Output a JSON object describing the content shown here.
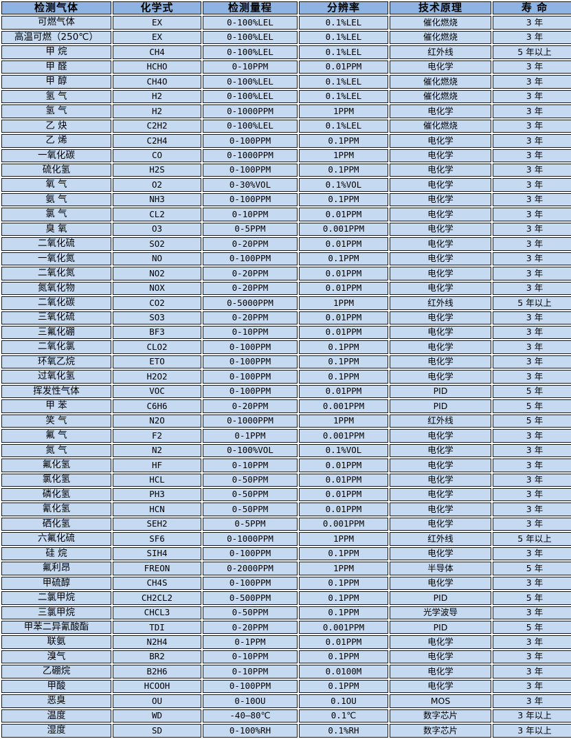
{
  "colors": {
    "header_bg": "#8DB4E2",
    "row_bg": "#C5D9F1",
    "border_color": "#141414",
    "text_color": "#000000",
    "page_bg": "#FFFFFF"
  },
  "table": {
    "col_names": [
      "cell-gas-name",
      "cell-chemical-formula",
      "cell-detection-range",
      "cell-resolution",
      "cell-technology",
      "cell-lifespan"
    ],
    "headers": [
      "检测气体",
      "化学式",
      "检测量程",
      "分辨率",
      "技术原理",
      "寿 命"
    ],
    "rows": [
      [
        "可燃气体",
        "EX",
        "0-100%LEL",
        "0.1%LEL",
        "催化燃烧",
        "3 年"
      ],
      [
        "高温可燃（250℃）",
        "EX",
        "0-100%LEL",
        "0.1%LEL",
        "催化燃烧",
        "3 年"
      ],
      [
        "甲 烷",
        "CH4",
        "0-100%LEL",
        "0.1%LEL",
        "红外线",
        "5 年以上"
      ],
      [
        "甲 醛",
        "HCHO",
        "0-10PPM",
        "0.01PPM",
        "电化学",
        "3 年"
      ],
      [
        "甲 醇",
        "CH4O",
        "0-100%LEL",
        "0.1%LEL",
        "催化燃烧",
        "3 年"
      ],
      [
        "氢 气",
        "H2",
        "0-100%LEL",
        "0.1%LEL",
        "催化燃烧",
        "3 年"
      ],
      [
        "氢 气",
        "H2",
        "0-1000PPM",
        "1PPM",
        "电化学",
        "3 年"
      ],
      [
        "乙 炔",
        "C2H2",
        "0-100%LEL",
        "0.1%LEL",
        "催化燃烧",
        "3 年"
      ],
      [
        "乙 烯",
        "C2H4",
        "0-100PPM",
        "0.1PPM",
        "电化学",
        "3 年"
      ],
      [
        "一氧化碳",
        "CO",
        "0-1000PPM",
        "1PPM",
        "电化学",
        "3 年"
      ],
      [
        "硫化氢",
        "H2S",
        "0-100PPM",
        "0.1PPM",
        "电化学",
        "3 年"
      ],
      [
        "氧 气",
        "O2",
        "0-30%VOL",
        "0.1%VOL",
        "电化学",
        "3 年"
      ],
      [
        "氨 气",
        "NH3",
        "0-100PPM",
        "0.1PPM",
        "电化学",
        "3 年"
      ],
      [
        "氯 气",
        "CL2",
        "0-10PPM",
        "0.01PPM",
        "电化学",
        "3 年"
      ],
      [
        "臭 氧",
        "O3",
        "0-5PPM",
        "0.001PPM",
        "电化学",
        "3 年"
      ],
      [
        "二氧化硫",
        "SO2",
        "0-20PPM",
        "0.01PPM",
        "电化学",
        "3 年"
      ],
      [
        "一氧化氮",
        "NO",
        "0-100PPM",
        "0.1PPM",
        "电化学",
        "3 年"
      ],
      [
        "二氧化氮",
        "NO2",
        "0-20PPM",
        "0.01PPM",
        "电化学",
        "3 年"
      ],
      [
        "氮氧化物",
        "NOX",
        "0-20PPM",
        "0.01PPM",
        "电化学",
        "3 年"
      ],
      [
        "二氧化碳",
        "CO2",
        "0-5000PPM",
        "1PPM",
        "红外线",
        "5 年以上"
      ],
      [
        "三氧化硫",
        "SO3",
        "0-20PPM",
        "0.01PPM",
        "电化学",
        "3 年"
      ],
      [
        "三氟化硼",
        "BF3",
        "0-10PPM",
        "0.01PPM",
        "电化学",
        "3 年"
      ],
      [
        "二氧化氯",
        "CLO2",
        "0-100PPM",
        "0.1PPM",
        "电化学",
        "3 年"
      ],
      [
        "环氧乙烷",
        "ETO",
        "0-100PPM",
        "0.1PPM",
        "电化学",
        "3 年"
      ],
      [
        "过氧化氢",
        "H2O2",
        "0-100PPM",
        "0.1PPM",
        "电化学",
        "3 年"
      ],
      [
        "挥发性气体",
        "VOC",
        "0-100PPM",
        "0.01PPM",
        "PID",
        "5 年"
      ],
      [
        "甲 苯",
        "C6H6",
        "0-20PPM",
        "0.001PPM",
        "PID",
        "5 年"
      ],
      [
        "笑 气",
        "N2O",
        "0-1000PPM",
        "1PPM",
        "红外线",
        "5 年"
      ],
      [
        "氟 气",
        "F2",
        "0-1PPM",
        "0.001PPM",
        "电化学",
        "3 年"
      ],
      [
        "氮 气",
        "N2",
        "0-100%VOL",
        "0.1%VOL",
        "电化学",
        "3 年"
      ],
      [
        "氟化氢",
        "HF",
        "0-10PPM",
        "0.01PPM",
        "电化学",
        "3 年"
      ],
      [
        "氯化氢",
        "HCL",
        "0-50PPM",
        "0.01PPM",
        "电化学",
        "3 年"
      ],
      [
        "磷化氢",
        "PH3",
        "0-50PPM",
        "0.01PPM",
        "电化学",
        "3 年"
      ],
      [
        "氰化氢",
        "HCN",
        "0-50PPM",
        "0.01PPM",
        "电化学",
        "3 年"
      ],
      [
        "硒化氢",
        "SEH2",
        "0-5PPM",
        "0.001PPM",
        "电化学",
        "3 年"
      ],
      [
        "六氟化硫",
        "SF6",
        "0-1000PPM",
        "1PPM",
        "红外线",
        "5 年以上"
      ],
      [
        "硅 烷",
        "SIH4",
        "0-100PPM",
        "0.1PPM",
        "电化学",
        "3 年"
      ],
      [
        "氟利昂",
        "FREON",
        "0-2000PPM",
        "1PPM",
        "半导体",
        "5 年"
      ],
      [
        "甲硫醇",
        "CH4S",
        "0-100PPM",
        "0.1PPM",
        "电化学",
        "3 年"
      ],
      [
        "二氯甲烷",
        "CH2CL2",
        "0-500PPM",
        "0.1PPM",
        "PID",
        "5 年"
      ],
      [
        "三氯甲烷",
        "CHCL3",
        "0-50PPM",
        "0.1PPM",
        "光学波导",
        "3 年"
      ],
      [
        "甲苯二异氰酸酯",
        "TDI",
        "0-20PPM",
        "0.001PPM",
        "PID",
        "5 年"
      ],
      [
        "联氨",
        "N2H4",
        "0-1PPM",
        "0.01PPM",
        "电化学",
        "3 年"
      ],
      [
        "溴气",
        "BR2",
        "0-10PPM",
        "0.1PPM",
        "电化学",
        "3 年"
      ],
      [
        "乙硼烷",
        "B2H6",
        "0-10PPM",
        "0.0100M",
        "电化学",
        "3 年"
      ],
      [
        "甲酸",
        "HCOOH",
        "0-100PPM",
        "0.1PPM",
        "电化学",
        "3 年"
      ],
      [
        "恶臭",
        "OU",
        "0-10OU",
        "0.1OU",
        "MOS",
        "3 年"
      ],
      [
        "温度",
        "WD",
        "-40—80℃",
        "0.1℃",
        "数字芯片",
        "3 年以上"
      ],
      [
        "湿度",
        "SD",
        "0-100%RH",
        "0.1%RH",
        "数字芯片",
        "3 年以上"
      ]
    ]
  }
}
